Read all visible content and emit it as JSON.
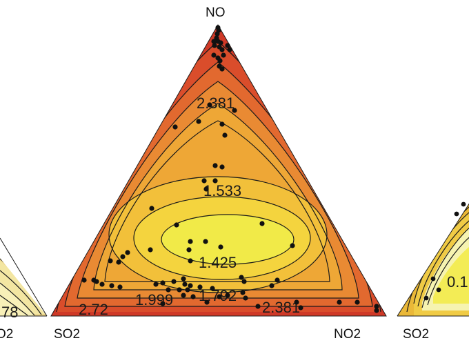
{
  "chart_data": [
    {
      "type": "ternary-contour",
      "panel": "left (partially visible)",
      "vertex_labels": {
        "bottom_right": "O2"
      },
      "contour_labels": [
        "78"
      ],
      "colors": [
        "#f8f0b8",
        "#f3e6a2",
        "#ecd48a"
      ]
    },
    {
      "type": "ternary-contour",
      "panel": "center",
      "vertex_labels": {
        "top": "NO",
        "bottom_left": "SO2",
        "bottom_right": "NO2"
      },
      "contour_labels": [
        "2.381",
        "1.533",
        "1.425",
        "1.792",
        "1.999",
        "2.72",
        "2.381"
      ],
      "color_scale": {
        "low": "#f1ea48",
        "mid": "#f0b83a",
        "high": "#d8402a"
      },
      "color_levels": [
        "#f1ea48",
        "#f4d43e",
        "#f2c03a",
        "#eea736",
        "#e98a33",
        "#e2692f",
        "#da4d2b",
        "#cf3927"
      ]
    },
    {
      "type": "ternary-contour",
      "panel": "right (partially visible)",
      "vertex_labels": {
        "bottom_left": "SO2"
      },
      "contour_labels": [
        "0.1"
      ],
      "colors": [
        "#f3ec55",
        "#f6f3b0",
        "#eab838"
      ]
    }
  ]
}
